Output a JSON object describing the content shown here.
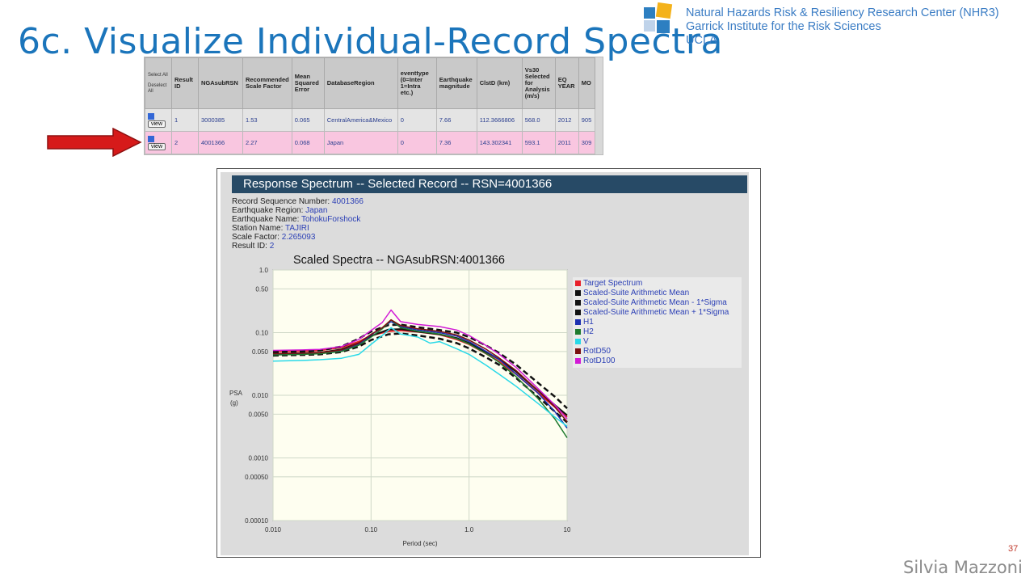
{
  "slide": {
    "title": "6c. Visualize Individual-Record Spectra",
    "org_lines": [
      "Natural Hazards Risk & Resiliency Research Center (NHR3)",
      "Garrick Institute  for the Risk Sciences",
      "UCLA"
    ],
    "page_number": "37",
    "author": "Silvia Mazzoni"
  },
  "table": {
    "select_label": "Select All",
    "deselect_label": "Deselect All",
    "headers": [
      "Result ID",
      "NGAsubRSN",
      "Recommended Scale Factor",
      "Mean Squared Error",
      "DatabaseRegion",
      "eventtype (0=Inter 1=Intra etc.)",
      "Earthquake magnitude",
      "ClstD (km)",
      "Vs30 Selected for Analysis (m/s)",
      "EQ YEAR",
      "MO"
    ],
    "view_label": "view",
    "rows": [
      {
        "cells": [
          "1",
          "3000385",
          "1.53",
          "0.065",
          "CentralAmerica&Mexico",
          "0",
          "7.66",
          "112.3666806",
          "568.0",
          "2012",
          "905"
        ],
        "selected": false
      },
      {
        "cells": [
          "2",
          "4001366",
          "2.27",
          "0.068",
          "Japan",
          "0",
          "7.36",
          "143.302341",
          "593.1",
          "2011",
          "309"
        ],
        "selected": true
      }
    ]
  },
  "panel": {
    "header": "Response Spectrum -- Selected Record -- RSN=4001366",
    "info": [
      {
        "label": "Record Sequence Number: ",
        "value": "4001366"
      },
      {
        "label": "Earthquake Region: ",
        "value": "Japan"
      },
      {
        "label": "Earthquake Name: ",
        "value": "TohokuForshock"
      },
      {
        "label": "Station Name: ",
        "value": "TAJIRI"
      },
      {
        "label": "Scale Factor: ",
        "value": "2.265093"
      },
      {
        "label": "Result ID: ",
        "value": "2"
      }
    ]
  },
  "chart_data": {
    "type": "line",
    "title": "Scaled Spectra -- NGAsubRSN:4001366",
    "xlabel": "Period (sec)",
    "ylabel": "PSA (g)",
    "xscale": "log",
    "yscale": "log",
    "xlim": [
      0.01,
      10
    ],
    "ylim": [
      0.0001,
      1.0
    ],
    "xticks": [
      "0.010",
      "0.10",
      "1.0",
      "10"
    ],
    "yticks": [
      "1.0",
      "0.50",
      "0.10",
      "0.050",
      "0.010",
      "0.0050",
      "0.0010",
      "0.00050",
      "0.00010"
    ],
    "grid": true,
    "legend_position": "right",
    "background": "#fefef0",
    "series": [
      {
        "name": "Target Spectrum",
        "color": "#e8202a",
        "width": 2,
        "dash": "",
        "x": [
          0.01,
          0.02,
          0.03,
          0.05,
          0.075,
          0.1,
          0.15,
          0.2,
          0.3,
          0.5,
          0.75,
          1.0,
          1.5,
          2,
          3,
          5,
          7.5,
          10
        ],
        "y": [
          0.05,
          0.051,
          0.052,
          0.058,
          0.072,
          0.09,
          0.105,
          0.108,
          0.103,
          0.093,
          0.078,
          0.065,
          0.046,
          0.035,
          0.022,
          0.011,
          0.0065,
          0.0045
        ]
      },
      {
        "name": "Scaled-Suite Arithmetic Mean",
        "color": "#111111",
        "width": 2,
        "dash": "",
        "x": [
          0.01,
          0.02,
          0.03,
          0.05,
          0.075,
          0.1,
          0.15,
          0.2,
          0.3,
          0.5,
          0.75,
          1.0,
          1.5,
          2,
          3,
          5,
          7.5,
          10
        ],
        "y": [
          0.046,
          0.047,
          0.048,
          0.054,
          0.068,
          0.088,
          0.112,
          0.114,
          0.104,
          0.094,
          0.082,
          0.068,
          0.049,
          0.038,
          0.024,
          0.012,
          0.007,
          0.0048
        ]
      },
      {
        "name": "Scaled-Suite Arithmetic Mean - 1*Sigma",
        "color": "#111111",
        "width": 2.5,
        "dash": "7,4",
        "x": [
          0.01,
          0.02,
          0.03,
          0.05,
          0.075,
          0.1,
          0.15,
          0.2,
          0.3,
          0.5,
          0.75,
          1.0,
          1.5,
          2,
          3,
          5,
          7.5,
          10
        ],
        "y": [
          0.043,
          0.044,
          0.045,
          0.049,
          0.06,
          0.076,
          0.094,
          0.097,
          0.09,
          0.08,
          0.068,
          0.056,
          0.04,
          0.031,
          0.019,
          0.0095,
          0.0055,
          0.0037
        ]
      },
      {
        "name": "Scaled-Suite Arithmetic Mean + 1*Sigma",
        "color": "#111111",
        "width": 2.5,
        "dash": "7,4",
        "x": [
          0.01,
          0.02,
          0.03,
          0.05,
          0.075,
          0.1,
          0.15,
          0.2,
          0.3,
          0.5,
          0.75,
          1.0,
          1.5,
          2,
          3,
          5,
          7.5,
          10
        ],
        "y": [
          0.049,
          0.05,
          0.052,
          0.06,
          0.08,
          0.104,
          0.132,
          0.134,
          0.122,
          0.11,
          0.1,
          0.085,
          0.062,
          0.048,
          0.031,
          0.016,
          0.0095,
          0.0062
        ]
      },
      {
        "name": "H1",
        "color": "#1c2fb0",
        "width": 1.5,
        "dash": "",
        "x": [
          0.01,
          0.02,
          0.03,
          0.05,
          0.075,
          0.1,
          0.13,
          0.16,
          0.2,
          0.3,
          0.5,
          0.75,
          1.0,
          1.5,
          2,
          3,
          5,
          7.5,
          10
        ],
        "y": [
          0.045,
          0.046,
          0.047,
          0.051,
          0.065,
          0.092,
          0.12,
          0.15,
          0.125,
          0.11,
          0.1,
          0.088,
          0.072,
          0.05,
          0.038,
          0.022,
          0.011,
          0.0055,
          0.003
        ]
      },
      {
        "name": "H2",
        "color": "#1f7a2e",
        "width": 1.5,
        "dash": "",
        "x": [
          0.01,
          0.02,
          0.03,
          0.05,
          0.075,
          0.1,
          0.13,
          0.16,
          0.2,
          0.3,
          0.5,
          0.75,
          1.0,
          1.5,
          2,
          3,
          5,
          7.5,
          10
        ],
        "y": [
          0.044,
          0.045,
          0.046,
          0.05,
          0.063,
          0.085,
          0.115,
          0.16,
          0.12,
          0.105,
          0.095,
          0.08,
          0.066,
          0.046,
          0.034,
          0.02,
          0.009,
          0.0042,
          0.0021
        ]
      },
      {
        "name": "V",
        "color": "#29d9e8",
        "width": 1.5,
        "dash": "",
        "x": [
          0.01,
          0.02,
          0.03,
          0.05,
          0.075,
          0.1,
          0.13,
          0.16,
          0.2,
          0.3,
          0.4,
          0.5,
          0.75,
          1.0,
          1.5,
          2,
          3,
          5,
          7.5,
          10
        ],
        "y": [
          0.035,
          0.036,
          0.037,
          0.039,
          0.045,
          0.065,
          0.09,
          0.12,
          0.095,
          0.085,
          0.068,
          0.072,
          0.055,
          0.045,
          0.03,
          0.022,
          0.014,
          0.0075,
          0.0045,
          0.0032
        ]
      },
      {
        "name": "RotD50",
        "color": "#7a1010",
        "width": 1.5,
        "dash": "",
        "x": [
          0.01,
          0.02,
          0.03,
          0.05,
          0.075,
          0.1,
          0.13,
          0.16,
          0.2,
          0.3,
          0.5,
          0.75,
          1.0,
          1.5,
          2,
          3,
          5,
          7.5,
          10
        ],
        "y": [
          0.046,
          0.047,
          0.048,
          0.053,
          0.068,
          0.094,
          0.12,
          0.16,
          0.13,
          0.115,
          0.105,
          0.092,
          0.076,
          0.054,
          0.04,
          0.025,
          0.012,
          0.0065,
          0.0038
        ]
      },
      {
        "name": "RotD100",
        "color": "#d21ad6",
        "width": 1.5,
        "dash": "",
        "x": [
          0.01,
          0.02,
          0.03,
          0.05,
          0.075,
          0.1,
          0.13,
          0.16,
          0.2,
          0.3,
          0.5,
          0.75,
          1.0,
          1.5,
          2,
          3,
          5,
          7.5,
          10
        ],
        "y": [
          0.052,
          0.053,
          0.054,
          0.06,
          0.078,
          0.108,
          0.145,
          0.23,
          0.15,
          0.135,
          0.125,
          0.11,
          0.09,
          0.062,
          0.046,
          0.028,
          0.013,
          0.007,
          0.0042
        ]
      }
    ]
  }
}
